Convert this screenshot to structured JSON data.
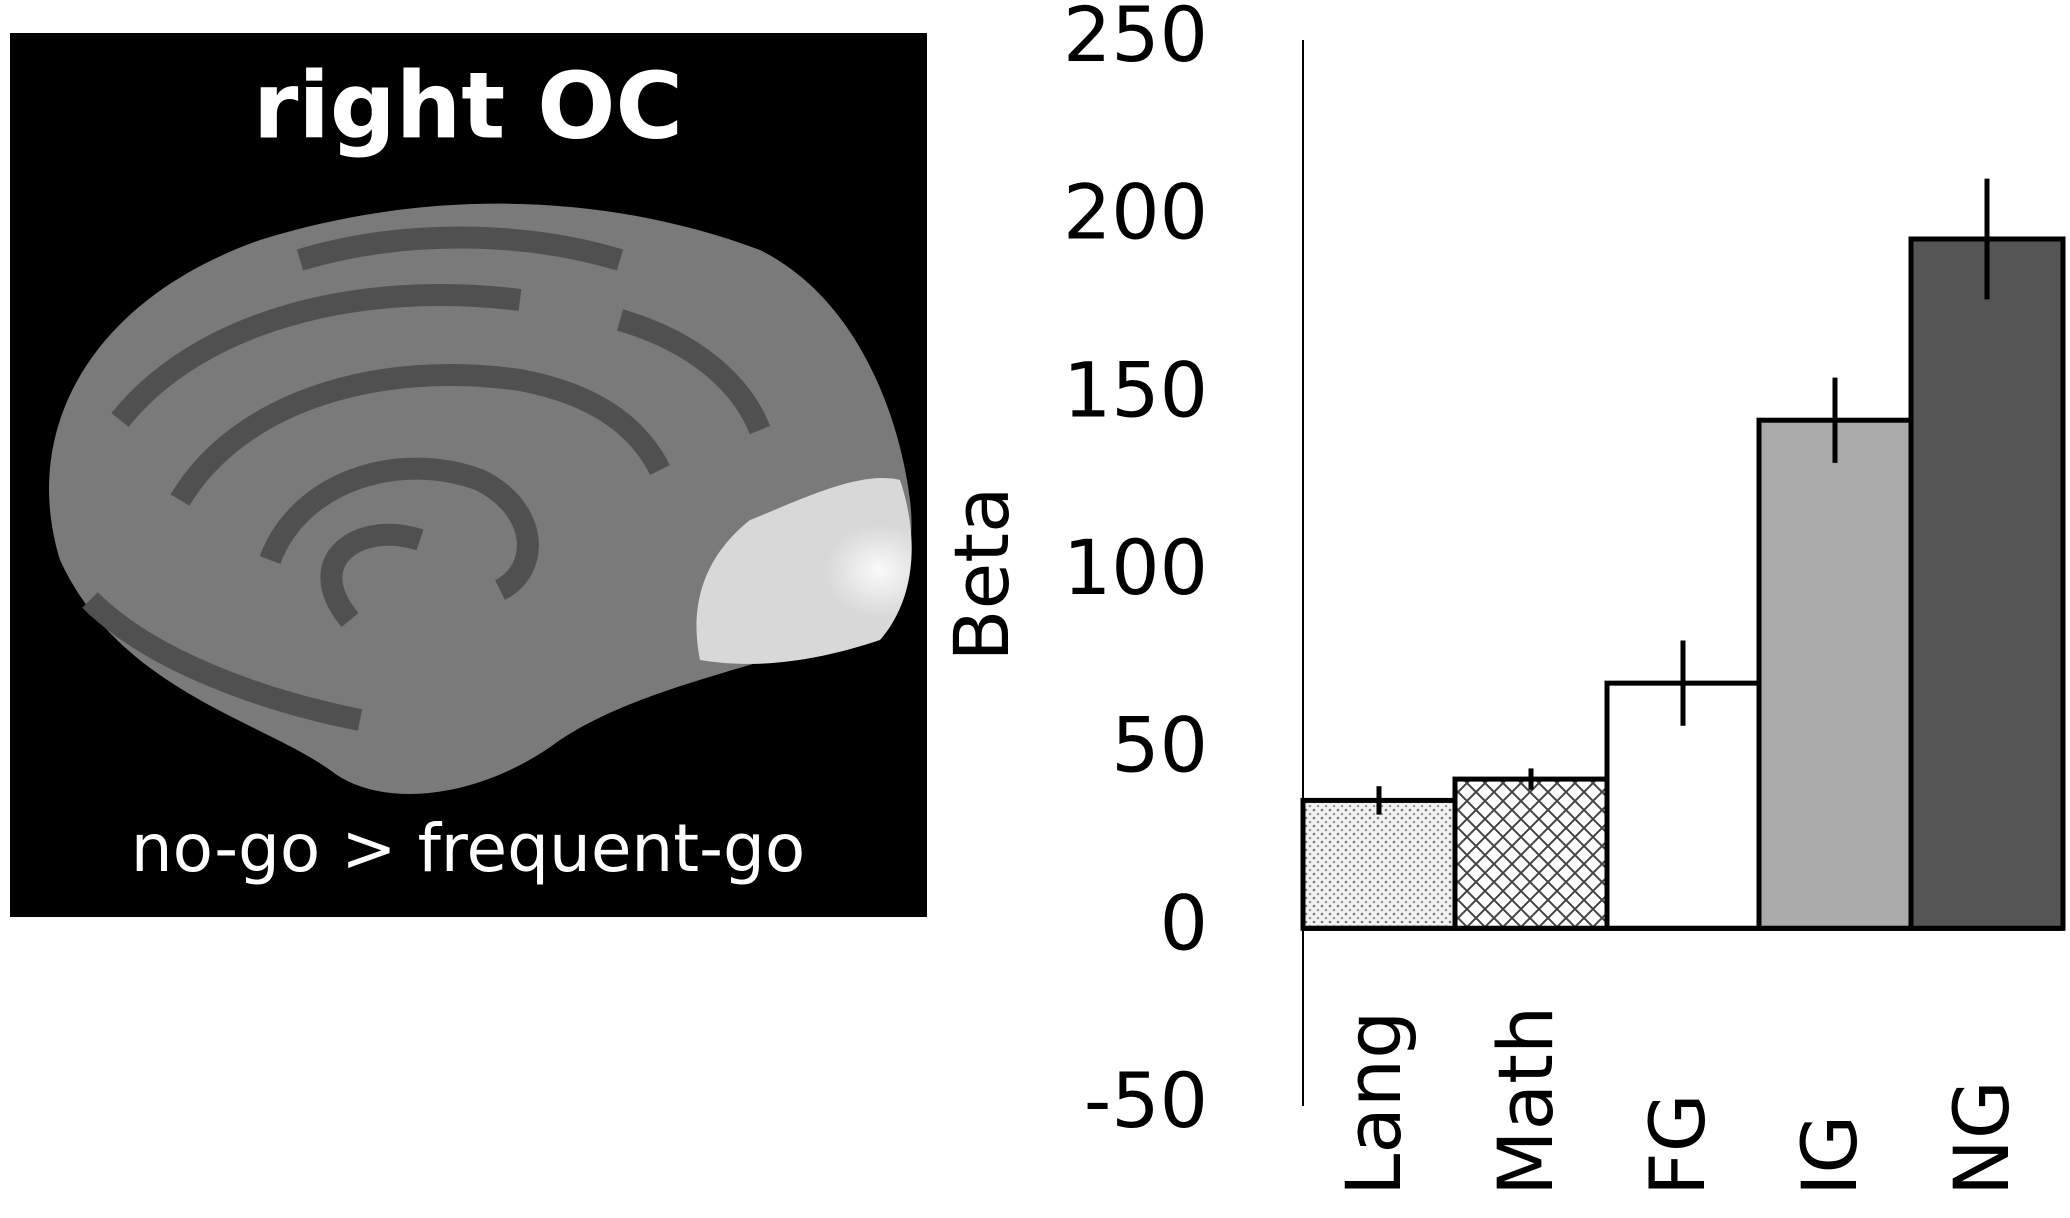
{
  "panel": {
    "title": "right OC",
    "caption": "no-go > frequent-go"
  },
  "chart_data": {
    "type": "bar",
    "ylabel": "Beta",
    "categories": [
      "Lang",
      "Math",
      "FG",
      "IG",
      "NG"
    ],
    "values": [
      36,
      42,
      69,
      143,
      194
    ],
    "errors": [
      4,
      3,
      12,
      12,
      17
    ],
    "colors": [
      "#ffffff",
      "#ffffff",
      "#ffffff",
      "#aaaaaa",
      "#555555"
    ],
    "fill_patterns": [
      "dots",
      "crosshatch",
      null,
      null,
      null
    ],
    "ylim": [
      -50,
      250
    ],
    "yticks": [
      -50,
      0,
      50,
      100,
      150,
      200,
      250
    ],
    "grid": false
  }
}
